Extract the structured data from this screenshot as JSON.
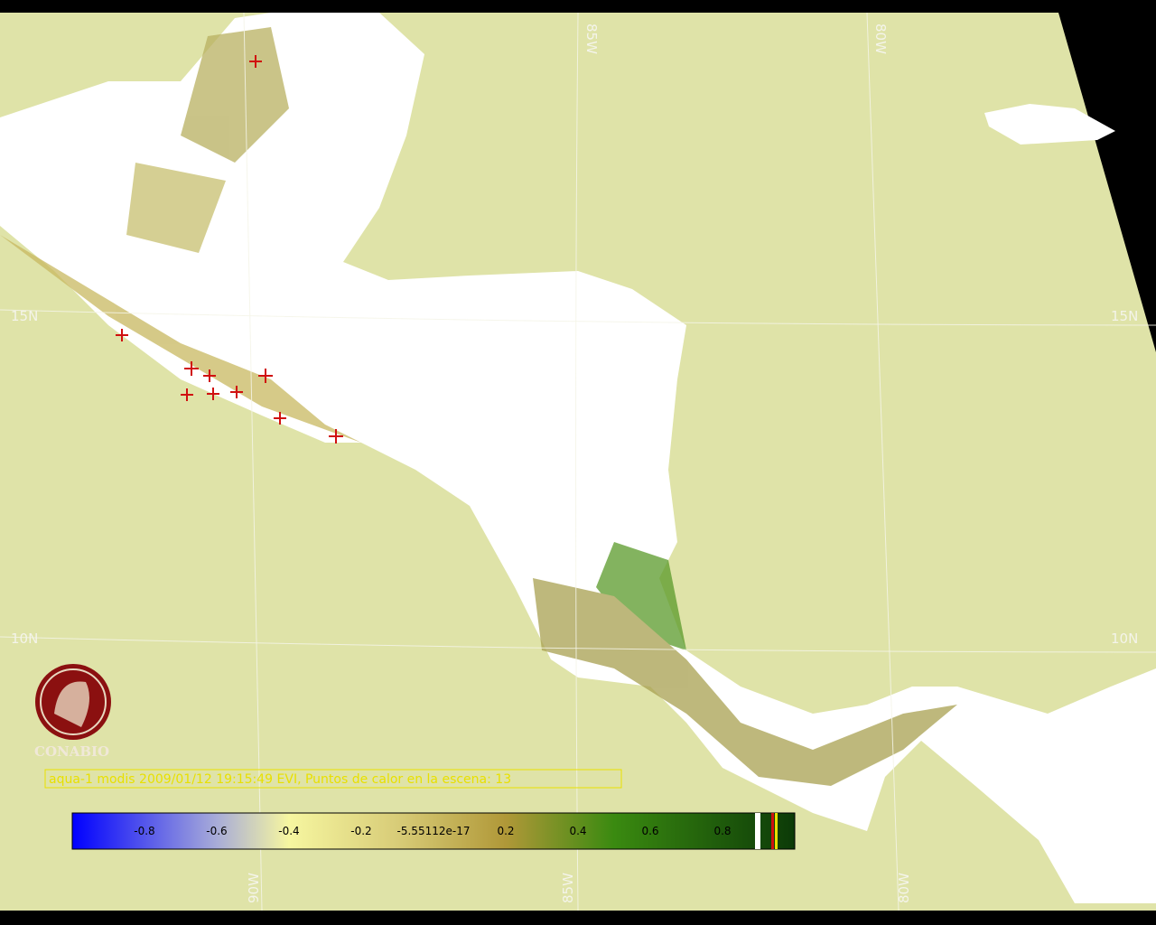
{
  "map": {
    "grid_labels": {
      "top": [
        "85W",
        "80W"
      ],
      "left": [
        "15N",
        "10N"
      ],
      "right": [
        "15N",
        "10N"
      ],
      "bottom": [
        "90W",
        "85W",
        "80W"
      ]
    },
    "logo": "CONABIO",
    "caption": "aqua-1 modis 2009/01/12 19:15:49 EVI, Puntos de calor en la escena: 13",
    "colorbar": {
      "labels": [
        "-0.8",
        "-0.6",
        "-0.4",
        "-0.2",
        "-5.55112e-17",
        "0.2",
        "0.4",
        "0.6",
        "0.8"
      ]
    }
  }
}
